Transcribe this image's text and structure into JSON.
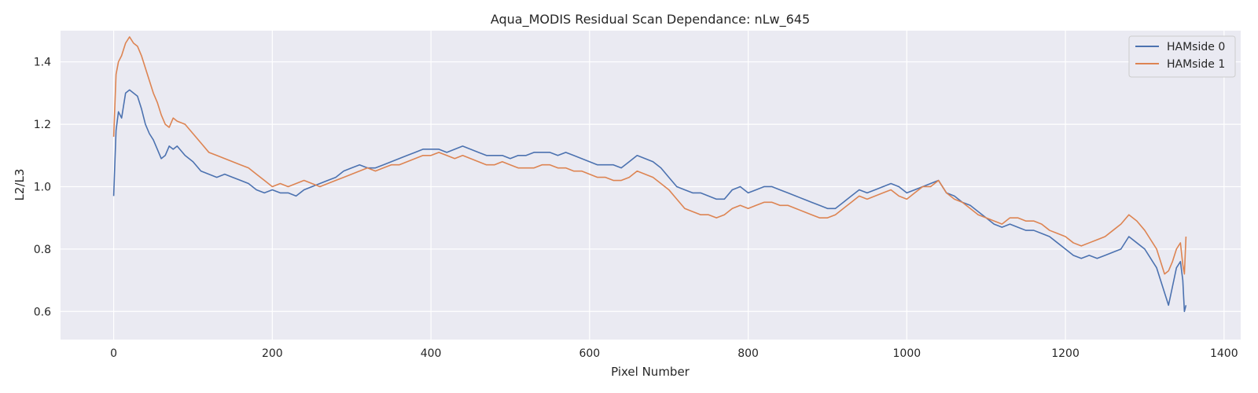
{
  "chart_data": {
    "type": "line",
    "title": "Aqua_MODIS Residual Scan Dependance: nLw_645",
    "xlabel": "Pixel Number",
    "ylabel": "L2/L3",
    "xlim": [
      -67,
      1421
    ],
    "ylim": [
      0.51,
      1.5
    ],
    "xticks": [
      0,
      200,
      400,
      600,
      800,
      1000,
      1200,
      1400
    ],
    "yticks": [
      0.6,
      0.8,
      1.0,
      1.2,
      1.4
    ],
    "xtick_labels": [
      "0",
      "200",
      "400",
      "600",
      "800",
      "1000",
      "1200",
      "1400"
    ],
    "ytick_labels": [
      "0.6",
      "0.8",
      "1.0",
      "1.2",
      "1.4"
    ],
    "grid": true,
    "legend_position": "top-right",
    "series": [
      {
        "name": "HAMside 0",
        "color": "#4c72b0",
        "x": [
          0,
          3,
          6,
          10,
          15,
          20,
          25,
          30,
          35,
          40,
          45,
          50,
          55,
          60,
          65,
          70,
          75,
          80,
          90,
          100,
          110,
          120,
          130,
          140,
          150,
          160,
          170,
          180,
          190,
          200,
          210,
          220,
          230,
          240,
          250,
          260,
          270,
          280,
          290,
          300,
          310,
          320,
          330,
          340,
          350,
          360,
          370,
          380,
          390,
          400,
          410,
          420,
          430,
          440,
          450,
          460,
          470,
          480,
          490,
          500,
          510,
          520,
          530,
          540,
          550,
          560,
          570,
          580,
          590,
          600,
          610,
          620,
          630,
          640,
          650,
          660,
          670,
          680,
          690,
          700,
          710,
          720,
          730,
          740,
          750,
          760,
          770,
          780,
          790,
          800,
          810,
          820,
          830,
          840,
          850,
          860,
          870,
          880,
          890,
          900,
          910,
          920,
          930,
          940,
          950,
          960,
          970,
          980,
          990,
          1000,
          1010,
          1020,
          1030,
          1040,
          1050,
          1060,
          1070,
          1080,
          1090,
          1100,
          1110,
          1120,
          1130,
          1140,
          1150,
          1160,
          1170,
          1180,
          1190,
          1200,
          1210,
          1220,
          1230,
          1240,
          1250,
          1260,
          1270,
          1280,
          1290,
          1300,
          1305,
          1310,
          1315,
          1320,
          1325,
          1330,
          1335,
          1340,
          1345,
          1348,
          1350,
          1352
        ],
        "values": [
          0.97,
          1.18,
          1.24,
          1.22,
          1.3,
          1.31,
          1.3,
          1.29,
          1.25,
          1.2,
          1.17,
          1.15,
          1.12,
          1.09,
          1.1,
          1.13,
          1.12,
          1.13,
          1.1,
          1.08,
          1.05,
          1.04,
          1.03,
          1.04,
          1.03,
          1.02,
          1.01,
          0.99,
          0.98,
          0.99,
          0.98,
          0.98,
          0.97,
          0.99,
          1.0,
          1.01,
          1.02,
          1.03,
          1.05,
          1.06,
          1.07,
          1.06,
          1.06,
          1.07,
          1.08,
          1.09,
          1.1,
          1.11,
          1.12,
          1.12,
          1.12,
          1.11,
          1.12,
          1.13,
          1.12,
          1.11,
          1.1,
          1.1,
          1.1,
          1.09,
          1.1,
          1.1,
          1.11,
          1.11,
          1.11,
          1.1,
          1.11,
          1.1,
          1.09,
          1.08,
          1.07,
          1.07,
          1.07,
          1.06,
          1.08,
          1.1,
          1.09,
          1.08,
          1.06,
          1.03,
          1.0,
          0.99,
          0.98,
          0.98,
          0.97,
          0.96,
          0.96,
          0.99,
          1.0,
          0.98,
          0.99,
          1.0,
          1.0,
          0.99,
          0.98,
          0.97,
          0.96,
          0.95,
          0.94,
          0.93,
          0.93,
          0.95,
          0.97,
          0.99,
          0.98,
          0.99,
          1.0,
          1.01,
          1.0,
          0.98,
          0.99,
          1.0,
          1.01,
          1.02,
          0.98,
          0.97,
          0.95,
          0.94,
          0.92,
          0.9,
          0.88,
          0.87,
          0.88,
          0.87,
          0.86,
          0.86,
          0.85,
          0.84,
          0.82,
          0.8,
          0.78,
          0.77,
          0.78,
          0.77,
          0.78,
          0.79,
          0.8,
          0.84,
          0.82,
          0.8,
          0.78,
          0.76,
          0.74,
          0.7,
          0.66,
          0.62,
          0.68,
          0.74,
          0.76,
          0.7,
          0.6,
          0.62
        ]
      },
      {
        "name": "HAMside 1",
        "color": "#dd8452",
        "x": [
          0,
          3,
          6,
          10,
          15,
          20,
          25,
          30,
          35,
          40,
          45,
          50,
          55,
          60,
          65,
          70,
          75,
          80,
          90,
          100,
          110,
          120,
          130,
          140,
          150,
          160,
          170,
          180,
          190,
          200,
          210,
          220,
          230,
          240,
          250,
          260,
          270,
          280,
          290,
          300,
          310,
          320,
          330,
          340,
          350,
          360,
          370,
          380,
          390,
          400,
          410,
          420,
          430,
          440,
          450,
          460,
          470,
          480,
          490,
          500,
          510,
          520,
          530,
          540,
          550,
          560,
          570,
          580,
          590,
          600,
          610,
          620,
          630,
          640,
          650,
          660,
          670,
          680,
          690,
          700,
          710,
          720,
          730,
          740,
          750,
          760,
          770,
          780,
          790,
          800,
          810,
          820,
          830,
          840,
          850,
          860,
          870,
          880,
          890,
          900,
          910,
          920,
          930,
          940,
          950,
          960,
          970,
          980,
          990,
          1000,
          1010,
          1020,
          1030,
          1040,
          1050,
          1060,
          1070,
          1080,
          1090,
          1100,
          1110,
          1120,
          1130,
          1140,
          1150,
          1160,
          1170,
          1180,
          1190,
          1200,
          1210,
          1220,
          1230,
          1240,
          1250,
          1260,
          1270,
          1280,
          1290,
          1300,
          1305,
          1310,
          1315,
          1320,
          1325,
          1330,
          1335,
          1340,
          1345,
          1348,
          1350,
          1352
        ],
        "values": [
          1.16,
          1.36,
          1.4,
          1.42,
          1.46,
          1.48,
          1.46,
          1.45,
          1.42,
          1.38,
          1.34,
          1.3,
          1.27,
          1.23,
          1.2,
          1.19,
          1.22,
          1.21,
          1.2,
          1.17,
          1.14,
          1.11,
          1.1,
          1.09,
          1.08,
          1.07,
          1.06,
          1.04,
          1.02,
          1.0,
          1.01,
          1.0,
          1.01,
          1.02,
          1.01,
          1.0,
          1.01,
          1.02,
          1.03,
          1.04,
          1.05,
          1.06,
          1.05,
          1.06,
          1.07,
          1.07,
          1.08,
          1.09,
          1.1,
          1.1,
          1.11,
          1.1,
          1.09,
          1.1,
          1.09,
          1.08,
          1.07,
          1.07,
          1.08,
          1.07,
          1.06,
          1.06,
          1.06,
          1.07,
          1.07,
          1.06,
          1.06,
          1.05,
          1.05,
          1.04,
          1.03,
          1.03,
          1.02,
          1.02,
          1.03,
          1.05,
          1.04,
          1.03,
          1.01,
          0.99,
          0.96,
          0.93,
          0.92,
          0.91,
          0.91,
          0.9,
          0.91,
          0.93,
          0.94,
          0.93,
          0.94,
          0.95,
          0.95,
          0.94,
          0.94,
          0.93,
          0.92,
          0.91,
          0.9,
          0.9,
          0.91,
          0.93,
          0.95,
          0.97,
          0.96,
          0.97,
          0.98,
          0.99,
          0.97,
          0.96,
          0.98,
          1.0,
          1.0,
          1.02,
          0.98,
          0.96,
          0.95,
          0.93,
          0.91,
          0.9,
          0.89,
          0.88,
          0.9,
          0.9,
          0.89,
          0.89,
          0.88,
          0.86,
          0.85,
          0.84,
          0.82,
          0.81,
          0.82,
          0.83,
          0.84,
          0.86,
          0.88,
          0.91,
          0.89,
          0.86,
          0.84,
          0.82,
          0.8,
          0.76,
          0.72,
          0.73,
          0.76,
          0.8,
          0.82,
          0.75,
          0.72,
          0.84
        ]
      }
    ]
  }
}
